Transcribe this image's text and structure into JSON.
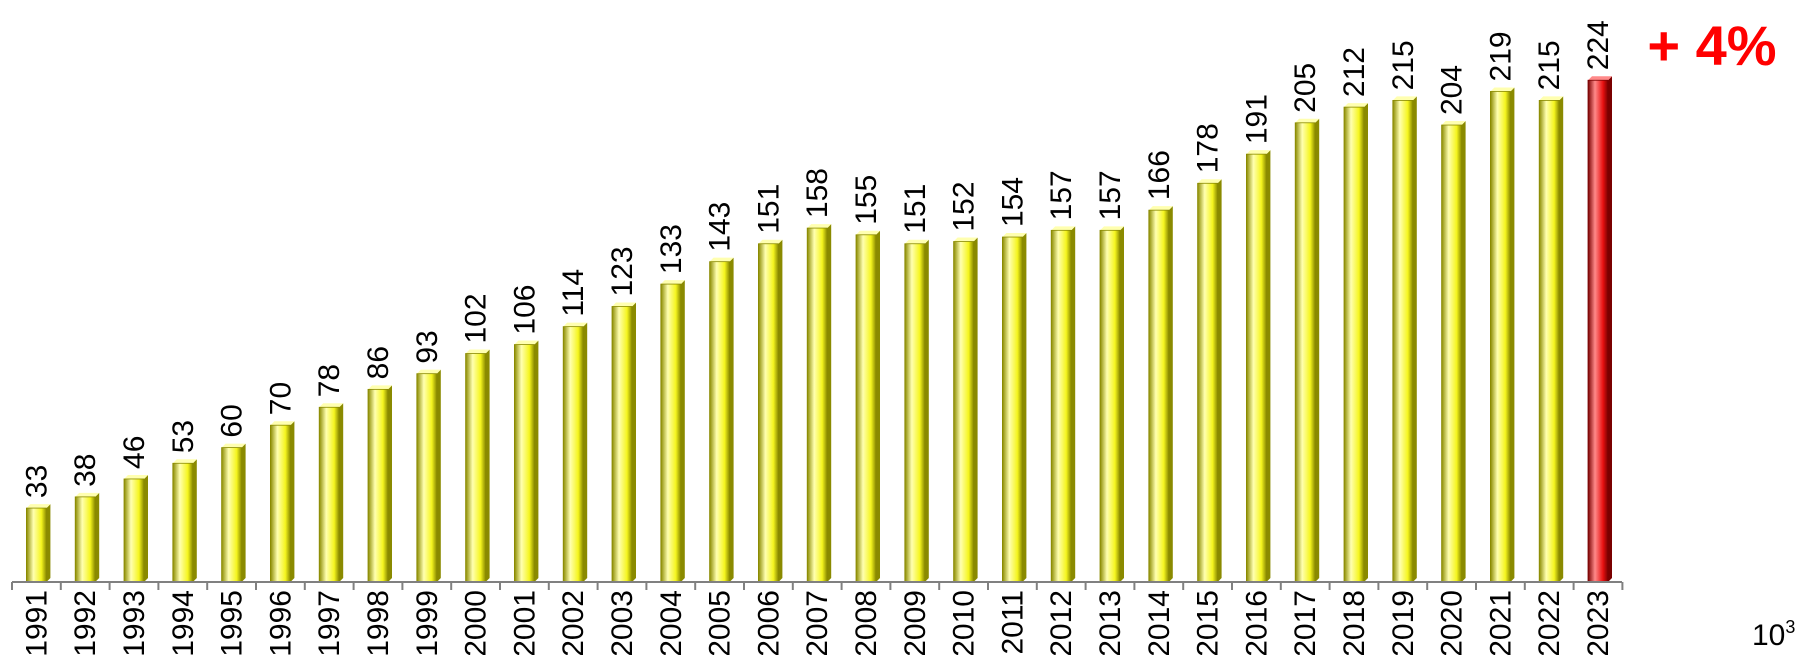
{
  "chart_data": {
    "type": "bar",
    "categories": [
      "1991",
      "1992",
      "1993",
      "1994",
      "1995",
      "1996",
      "1997",
      "1998",
      "1999",
      "2000",
      "2001",
      "2002",
      "2003",
      "2004",
      "2005",
      "2006",
      "2007",
      "2008",
      "2009",
      "2010",
      "2011",
      "2012",
      "2013",
      "2014",
      "2015",
      "2016",
      "2017",
      "2018",
      "2019",
      "2020",
      "2021",
      "2022",
      "2023"
    ],
    "values": [
      33,
      38,
      46,
      53,
      60,
      70,
      78,
      86,
      93,
      102,
      106,
      114,
      123,
      133,
      143,
      151,
      158,
      155,
      151,
      152,
      154,
      157,
      157,
      166,
      178,
      191,
      205,
      212,
      215,
      204,
      219,
      215,
      224
    ],
    "value_labels": [
      "33",
      "38",
      "46",
      "53",
      "60",
      "70",
      "78",
      "86",
      "93",
      "102",
      "106",
      "114",
      "123",
      "133",
      "143",
      "151",
      "158",
      "155",
      "151",
      "152",
      "154",
      "157",
      "157",
      "166",
      "178",
      "191",
      "205",
      "212",
      "215",
      "204",
      "219",
      "215",
      "224"
    ],
    "highlight_index": 32,
    "title": "",
    "xlabel": "",
    "ylabel": "",
    "ylim": [
      0,
      224
    ],
    "grid": false,
    "annotation": "+ 4%",
    "unit": {
      "base": "10",
      "exponent": "3"
    },
    "colors": {
      "bar": "#f5f51e",
      "bar_light": "#ffffb0",
      "bar_dark": "#8a8a00",
      "highlight": "#e81010",
      "highlight_light": "#ff8a8a",
      "highlight_dark": "#7a0000",
      "annotation": "#ff0000",
      "axis": "#808080"
    }
  }
}
